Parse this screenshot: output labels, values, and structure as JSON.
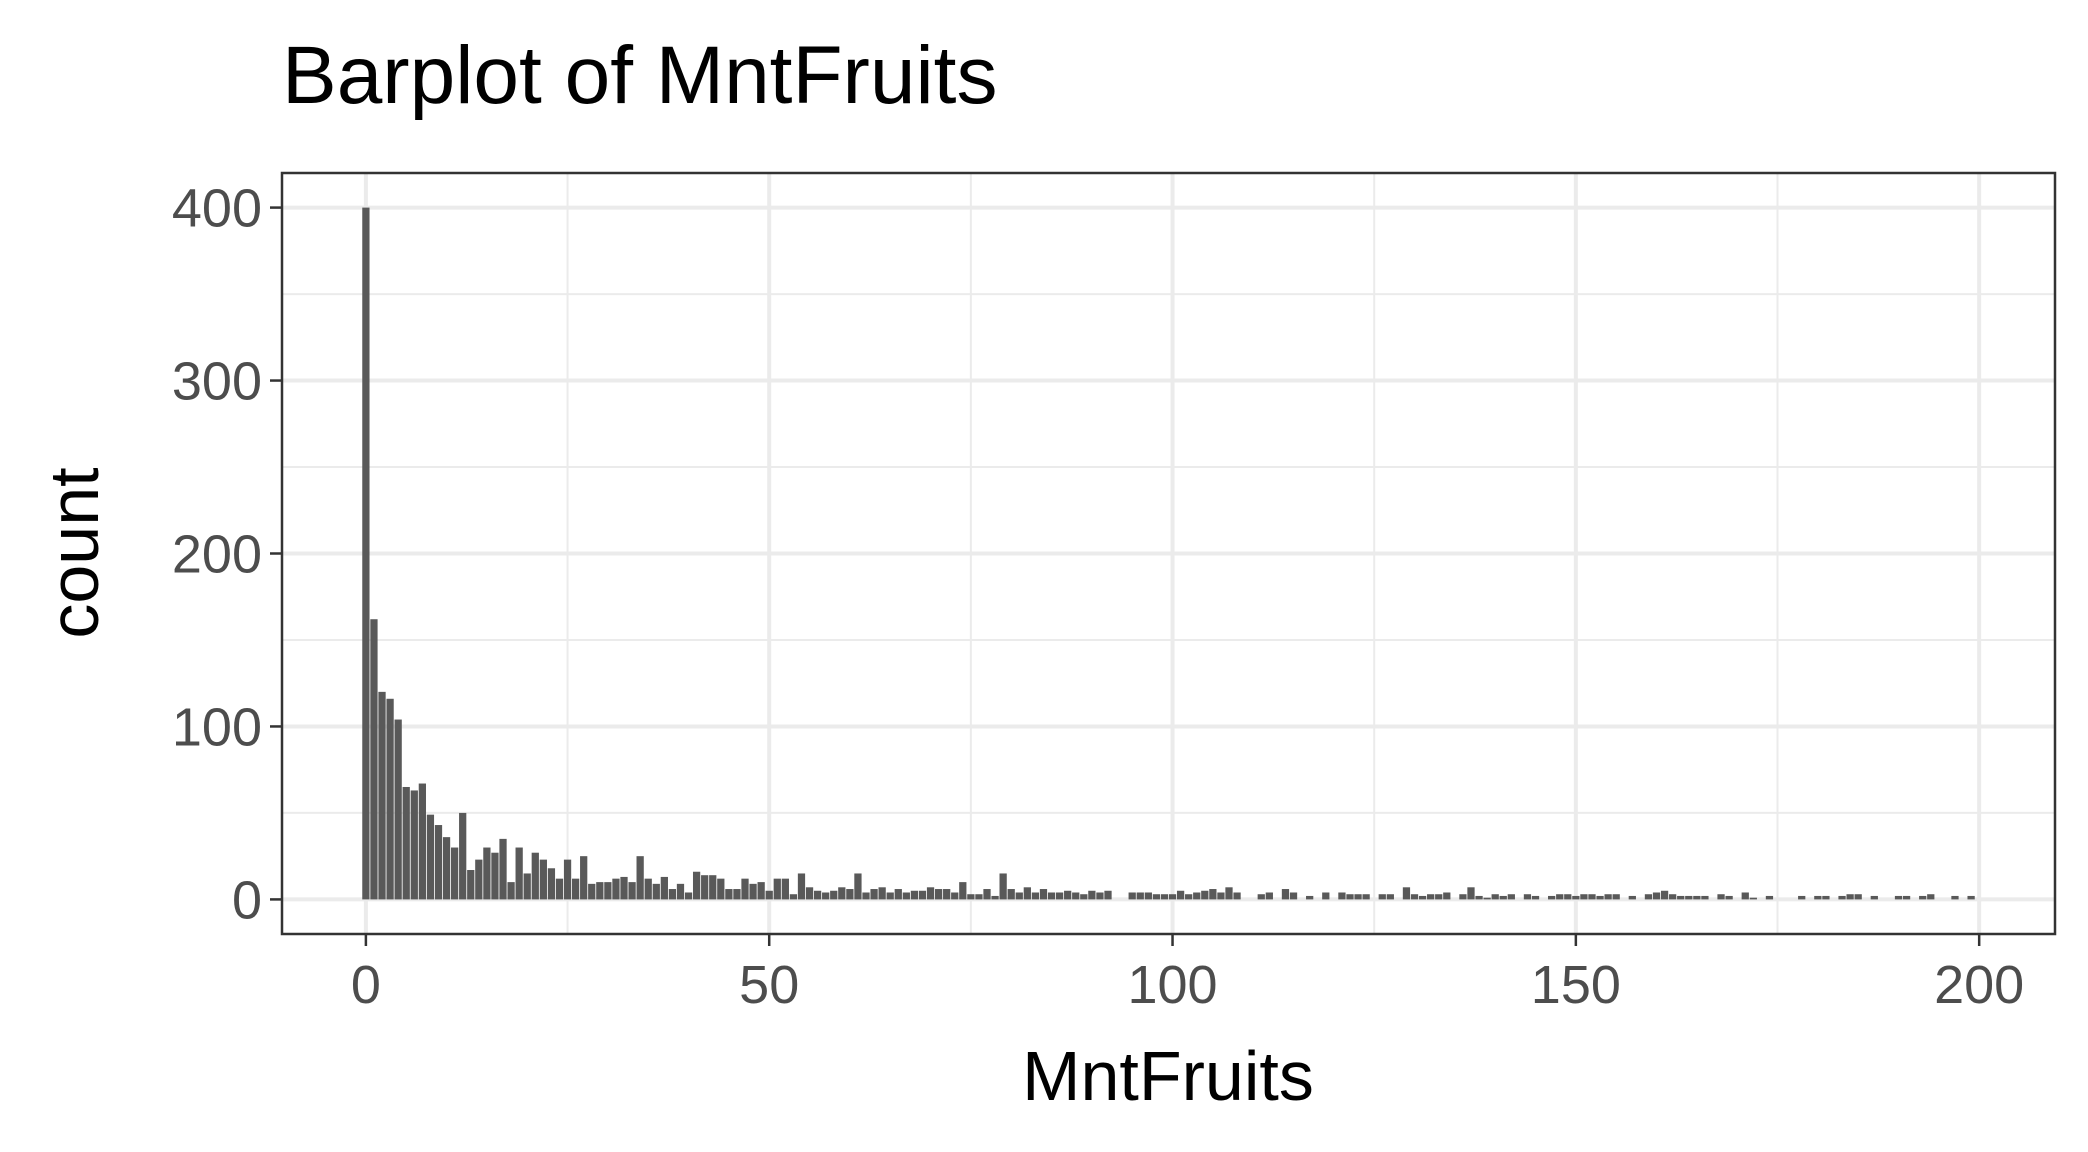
{
  "chart_data": {
    "type": "bar",
    "title": "Barplot of MntFruits",
    "xlabel": "MntFruits",
    "ylabel": "count",
    "color": "#595959",
    "grid": true,
    "xlim": [
      -10.4,
      209.4
    ],
    "xticks": [
      0,
      50,
      100,
      150,
      200
    ],
    "xminorticks": [
      25,
      75,
      125,
      175
    ],
    "ylim": [
      -20,
      420
    ],
    "yticks": [
      0,
      100,
      200,
      300,
      400
    ],
    "yminorticks": [
      50,
      150,
      250,
      350
    ],
    "x": [
      0,
      1,
      2,
      3,
      4,
      5,
      6,
      7,
      8,
      9,
      10,
      11,
      12,
      13,
      14,
      15,
      16,
      17,
      18,
      19,
      20,
      21,
      22,
      23,
      24,
      25,
      26,
      27,
      28,
      29,
      30,
      31,
      32,
      33,
      34,
      35,
      36,
      37,
      38,
      39,
      40,
      41,
      42,
      43,
      44,
      45,
      46,
      47,
      48,
      49,
      50,
      51,
      52,
      53,
      54,
      55,
      56,
      57,
      58,
      59,
      60,
      61,
      62,
      63,
      64,
      65,
      66,
      67,
      68,
      69,
      70,
      71,
      72,
      73,
      74,
      75,
      76,
      77,
      78,
      79,
      80,
      81,
      82,
      83,
      84,
      85,
      86,
      87,
      88,
      89,
      90,
      91,
      92,
      95,
      96,
      97,
      98,
      99,
      100,
      101,
      102,
      103,
      104,
      105,
      106,
      107,
      108,
      111,
      112,
      114,
      115,
      117,
      119,
      121,
      122,
      123,
      124,
      126,
      127,
      129,
      130,
      131,
      132,
      133,
      134,
      136,
      137,
      138,
      139,
      140,
      141,
      142,
      144,
      145,
      147,
      148,
      149,
      150,
      151,
      152,
      153,
      154,
      155,
      157,
      159,
      160,
      161,
      162,
      163,
      164,
      165,
      166,
      168,
      169,
      171,
      172,
      174,
      178,
      180,
      181,
      183,
      184,
      185,
      187,
      190,
      191,
      193,
      194,
      197,
      199
    ],
    "values": [
      400,
      162,
      120,
      116,
      104,
      65,
      63,
      67,
      49,
      43,
      36,
      30,
      50,
      17,
      23,
      30,
      27,
      35,
      10,
      30,
      15,
      27,
      23,
      18,
      12,
      23,
      12,
      25,
      9,
      10,
      10,
      12,
      13,
      10,
      25,
      12,
      9,
      13,
      6,
      9,
      4,
      16,
      14,
      14,
      12,
      6,
      6,
      12,
      9,
      10,
      5,
      12,
      12,
      3,
      15,
      7,
      5,
      4,
      5,
      7,
      6,
      15,
      4,
      6,
      7,
      4,
      6,
      4,
      5,
      5,
      7,
      6,
      6,
      4,
      10,
      3,
      3,
      6,
      2,
      15,
      6,
      4,
      7,
      4,
      6,
      4,
      4,
      5,
      4,
      3,
      5,
      4,
      5,
      4,
      4,
      4,
      3,
      3,
      3,
      5,
      3,
      4,
      5,
      6,
      4,
      7,
      4,
      3,
      4,
      6,
      4,
      2,
      4,
      4,
      3,
      3,
      3,
      3,
      3,
      7,
      3,
      2,
      3,
      3,
      4,
      3,
      7,
      2,
      1,
      3,
      2,
      3,
      3,
      2,
      2,
      3,
      3,
      2,
      3,
      3,
      2,
      3,
      3,
      2,
      3,
      4,
      5,
      3,
      2,
      2,
      2,
      2,
      3,
      2,
      4,
      1,
      2,
      2,
      2,
      2,
      2,
      3,
      3,
      2,
      2,
      2,
      2,
      3,
      2,
      2
    ]
  }
}
